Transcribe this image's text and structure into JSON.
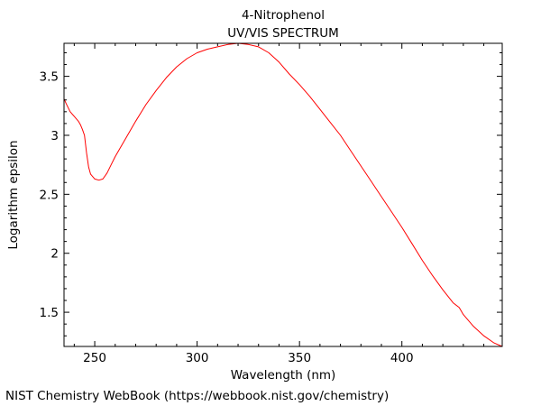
{
  "chart_data": {
    "type": "line",
    "title": "4-Nitrophenol",
    "subtitle": "UV/VIS SPECTRUM",
    "xlabel": "Wavelength (nm)",
    "ylabel": "Logarithm epsilon",
    "xlim": [
      235,
      449
    ],
    "ylim": [
      1.21,
      3.78
    ],
    "x_ticks": [
      250,
      300,
      350,
      400
    ],
    "x_tick_labels": [
      "250",
      "300",
      "350",
      "400"
    ],
    "y_ticks": [
      1.5,
      2,
      2.5,
      3,
      3.5
    ],
    "y_tick_labels": [
      "1.5",
      "2",
      "2.5",
      "3",
      "3.5"
    ],
    "series": [
      {
        "name": "4-Nitrophenol",
        "color": "#ff0000",
        "x": [
          235,
          236,
          238,
          240,
          242,
          243,
          244,
          245,
          246,
          247,
          248,
          250,
          252,
          254,
          256,
          258,
          260,
          263,
          266,
          270,
          275,
          280,
          285,
          290,
          295,
          300,
          305,
          310,
          315,
          320,
          325,
          330,
          335,
          340,
          345,
          350,
          355,
          360,
          365,
          370,
          375,
          380,
          385,
          390,
          395,
          400,
          405,
          410,
          415,
          420,
          425,
          428,
          430,
          432,
          435,
          440,
          445,
          449
        ],
        "y": [
          3.31,
          3.27,
          3.2,
          3.16,
          3.12,
          3.09,
          3.05,
          3.0,
          2.85,
          2.73,
          2.67,
          2.63,
          2.62,
          2.63,
          2.68,
          2.75,
          2.82,
          2.91,
          3.0,
          3.12,
          3.26,
          3.38,
          3.49,
          3.58,
          3.65,
          3.7,
          3.73,
          3.75,
          3.77,
          3.78,
          3.77,
          3.75,
          3.7,
          3.62,
          3.52,
          3.43,
          3.33,
          3.22,
          3.11,
          3.0,
          2.87,
          2.74,
          2.61,
          2.48,
          2.35,
          2.22,
          2.08,
          1.94,
          1.81,
          1.69,
          1.58,
          1.54,
          1.48,
          1.44,
          1.38,
          1.3,
          1.24,
          1.21
        ]
      }
    ]
  },
  "footer": {
    "credit": "NIST Chemistry WebBook (https://webbook.nist.gov/chemistry)"
  }
}
